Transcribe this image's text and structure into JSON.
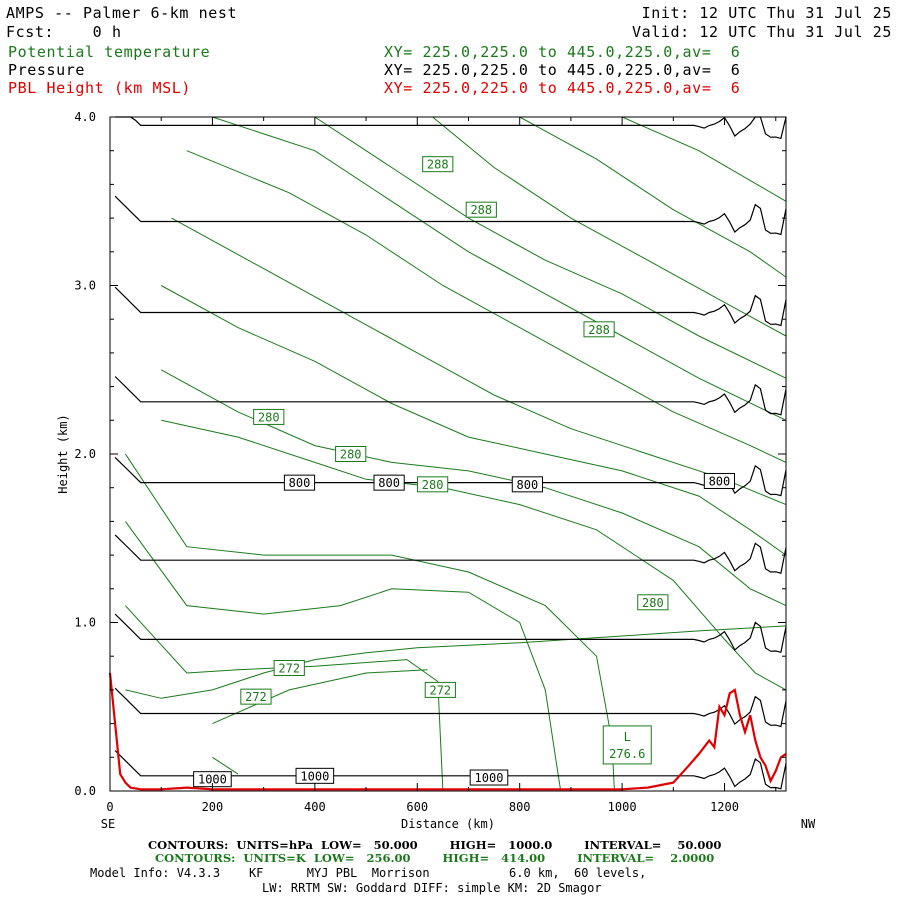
{
  "header": {
    "title": "AMPS -- Palmer 6-km nest",
    "fcst": "Fcst:    0 h",
    "init": "Init: 12 UTC Thu 31 Jul 25",
    "valid": "Valid: 12 UTC Thu 31 Jul 25",
    "fields": [
      {
        "name": "Potential temperature",
        "xy": "XY= 225.0,225.0 to 445.0,225.0,av=  6",
        "color": "#1a7a1a"
      },
      {
        "name": "Pressure",
        "xy": "XY= 225.0,225.0 to 445.0,225.0,av=  6",
        "color": "#000000"
      },
      {
        "name": "PBL Height (km MSL)",
        "xy": "XY= 225.0,225.0 to 445.0,225.0,av=  6",
        "color": "#e00000"
      }
    ]
  },
  "footer": {
    "pressure_contours": "CONTOURS:  UNITS=hPa  LOW=   50.000        HIGH=   1000.0        INTERVAL=    50.000",
    "theta_contours": "CONTOURS:  UNITS=K  LOW=   256.00        HIGH=   414.00        INTERVAL=    2.0000",
    "model_info": "Model Info: V4.3.3    KF      MYJ PBL  Morrison           6.0 km,  60 levels,",
    "physics": "LW: RRTM SW: Goddard DIFF: simple KM: 2D Smagor"
  },
  "chart_data": {
    "type": "line",
    "xlabel": "Distance (km)",
    "ylabel": "Height (km)",
    "xlim": [
      0,
      1320
    ],
    "ylim": [
      0,
      4.0
    ],
    "x_ticks": [
      0,
      200,
      400,
      600,
      800,
      1000,
      1200
    ],
    "y_ticks": [
      0.0,
      1.0,
      2.0,
      3.0,
      4.0
    ],
    "y_tick_labels": [
      "0.0",
      "1.0",
      "2.0",
      "3.0",
      "4.0"
    ],
    "x_end_labels": {
      "left": "SE",
      "right": "NW"
    },
    "colors": {
      "theta": "#1a7a1a",
      "pressure": "#000000",
      "pbl": "#e00000"
    },
    "pressure_isobars": [
      {
        "hPa": 1000,
        "height_km": 0.09
      },
      {
        "hPa": 950,
        "height_km": 0.46
      },
      {
        "hPa": 900,
        "height_km": 0.9
      },
      {
        "hPa": 850,
        "height_km": 1.37
      },
      {
        "hPa": 800,
        "height_km": 1.83
      },
      {
        "hPa": 750,
        "height_km": 2.31
      },
      {
        "hPa": 700,
        "height_km": 2.84
      },
      {
        "hPa": 650,
        "height_km": 3.38
      },
      {
        "hPa": 600,
        "height_km": 3.95
      }
    ],
    "pressure_labels": [
      {
        "text": "1000",
        "x": 200,
        "y": 0.07
      },
      {
        "text": "1000",
        "x": 400,
        "y": 0.09
      },
      {
        "text": "1000",
        "x": 740,
        "y": 0.08
      },
      {
        "text": "800",
        "x": 370,
        "y": 1.83
      },
      {
        "text": "800",
        "x": 545,
        "y": 1.83
      },
      {
        "text": "800",
        "x": 815,
        "y": 1.82
      },
      {
        "text": "800",
        "x": 1190,
        "y": 1.84
      }
    ],
    "theta_lines": [
      {
        "points": [
          [
            30,
            0.6
          ],
          [
            100,
            0.55
          ],
          [
            200,
            0.6
          ],
          [
            300,
            0.7
          ],
          [
            400,
            0.78
          ],
          [
            500,
            0.82
          ],
          [
            600,
            0.85
          ],
          [
            800,
            0.88
          ],
          [
            1000,
            0.92
          ],
          [
            1150,
            0.95
          ],
          [
            1320,
            0.98
          ]
        ]
      },
      {
        "points": [
          [
            30,
            1.1
          ],
          [
            150,
            0.7
          ],
          [
            250,
            0.72
          ],
          [
            400,
            0.74
          ],
          [
            580,
            0.78
          ],
          [
            640,
            0.65
          ],
          [
            650,
            0.0
          ]
        ]
      },
      {
        "points": [
          [
            200,
            0.4
          ],
          [
            350,
            0.6
          ],
          [
            500,
            0.7
          ],
          [
            620,
            0.72
          ]
        ]
      },
      {
        "points": [
          [
            200,
            0.2
          ],
          [
            250,
            0.1
          ]
        ]
      },
      {
        "points": [
          [
            30,
            1.6
          ],
          [
            150,
            1.1
          ],
          [
            300,
            1.05
          ],
          [
            450,
            1.1
          ],
          [
            550,
            1.2
          ],
          [
            700,
            1.18
          ],
          [
            800,
            1.0
          ],
          [
            850,
            0.6
          ],
          [
            870,
            0.2
          ],
          [
            880,
            0.0
          ]
        ]
      },
      {
        "points": [
          [
            30,
            2.0
          ],
          [
            150,
            1.45
          ],
          [
            300,
            1.4
          ],
          [
            450,
            1.4
          ],
          [
            550,
            1.4
          ],
          [
            700,
            1.3
          ],
          [
            850,
            1.1
          ],
          [
            950,
            0.8
          ],
          [
            980,
            0.3
          ],
          [
            985,
            0.0
          ]
        ]
      },
      {
        "points": [
          [
            100,
            2.2
          ],
          [
            250,
            2.1
          ],
          [
            400,
            1.95
          ],
          [
            500,
            1.85
          ],
          [
            650,
            1.8
          ],
          [
            800,
            1.7
          ],
          [
            950,
            1.55
          ],
          [
            1100,
            1.25
          ],
          [
            1200,
            0.9
          ],
          [
            1260,
            0.7
          ],
          [
            1320,
            0.6
          ]
        ]
      },
      {
        "points": [
          [
            100,
            2.5
          ],
          [
            250,
            2.25
          ],
          [
            400,
            2.05
          ],
          [
            550,
            1.95
          ],
          [
            700,
            1.9
          ],
          [
            850,
            1.8
          ],
          [
            1000,
            1.65
          ],
          [
            1150,
            1.45
          ],
          [
            1250,
            1.2
          ],
          [
            1320,
            1.1
          ]
        ]
      },
      {
        "points": [
          [
            100,
            3.0
          ],
          [
            250,
            2.75
          ],
          [
            400,
            2.55
          ],
          [
            550,
            2.3
          ],
          [
            700,
            2.1
          ],
          [
            850,
            2.0
          ],
          [
            1000,
            1.9
          ],
          [
            1150,
            1.75
          ],
          [
            1250,
            1.55
          ],
          [
            1320,
            1.4
          ]
        ]
      },
      {
        "points": [
          [
            120,
            3.4
          ],
          [
            300,
            3.1
          ],
          [
            450,
            2.85
          ],
          [
            600,
            2.6
          ],
          [
            750,
            2.35
          ],
          [
            900,
            2.15
          ],
          [
            1050,
            2.0
          ],
          [
            1200,
            1.85
          ],
          [
            1320,
            1.7
          ]
        ]
      },
      {
        "points": [
          [
            150,
            3.8
          ],
          [
            350,
            3.55
          ],
          [
            500,
            3.3
          ],
          [
            650,
            3.0
          ],
          [
            800,
            2.75
          ],
          [
            950,
            2.5
          ],
          [
            1100,
            2.25
          ],
          [
            1250,
            2.05
          ],
          [
            1320,
            1.95
          ]
        ]
      },
      {
        "points": [
          [
            200,
            4.0
          ],
          [
            400,
            3.8
          ],
          [
            550,
            3.5
          ],
          [
            700,
            3.2
          ],
          [
            850,
            2.95
          ],
          [
            1000,
            2.7
          ],
          [
            1150,
            2.45
          ],
          [
            1320,
            2.2
          ]
        ]
      },
      {
        "points": [
          [
            400,
            4.0
          ],
          [
            550,
            3.7
          ],
          [
            700,
            3.4
          ],
          [
            850,
            3.15
          ],
          [
            1000,
            2.95
          ],
          [
            1150,
            2.7
          ],
          [
            1320,
            2.45
          ]
        ]
      },
      {
        "points": [
          [
            630,
            4.0
          ],
          [
            750,
            3.7
          ],
          [
            900,
            3.4
          ],
          [
            1050,
            3.15
          ],
          [
            1200,
            2.9
          ],
          [
            1320,
            2.7
          ]
        ]
      },
      {
        "points": [
          [
            800,
            4.0
          ],
          [
            950,
            3.75
          ],
          [
            1100,
            3.45
          ],
          [
            1250,
            3.2
          ],
          [
            1320,
            3.05
          ]
        ]
      },
      {
        "points": [
          [
            1000,
            4.0
          ],
          [
            1150,
            3.8
          ],
          [
            1320,
            3.5
          ]
        ]
      }
    ],
    "theta_labels": [
      {
        "text": "288",
        "x": 640,
        "y": 3.72
      },
      {
        "text": "288",
        "x": 725,
        "y": 3.45
      },
      {
        "text": "288",
        "x": 955,
        "y": 2.74
      },
      {
        "text": "280",
        "x": 310,
        "y": 2.22
      },
      {
        "text": "280",
        "x": 470,
        "y": 2.0
      },
      {
        "text": "280",
        "x": 630,
        "y": 1.82
      },
      {
        "text": "280",
        "x": 1060,
        "y": 1.12
      },
      {
        "text": "272",
        "x": 350,
        "y": 0.73
      },
      {
        "text": "272",
        "x": 285,
        "y": 0.56
      },
      {
        "text": "272",
        "x": 645,
        "y": 0.6
      }
    ],
    "low_marker": {
      "letter": "L",
      "value": "276.6",
      "x": 1010,
      "y": 0.22
    },
    "pbl_height": {
      "x": [
        0,
        10,
        20,
        30,
        40,
        60,
        100,
        150,
        200,
        250,
        300,
        400,
        500,
        600,
        700,
        800,
        900,
        1000,
        1050,
        1100,
        1130,
        1150,
        1170,
        1180,
        1190,
        1200,
        1210,
        1220,
        1230,
        1240,
        1250,
        1260,
        1270,
        1280,
        1290,
        1300,
        1310,
        1320
      ],
      "y": [
        0.7,
        0.4,
        0.1,
        0.05,
        0.02,
        0.01,
        0.01,
        0.02,
        0.01,
        0.01,
        0.01,
        0.01,
        0.01,
        0.01,
        0.01,
        0.01,
        0.01,
        0.01,
        0.02,
        0.05,
        0.15,
        0.22,
        0.3,
        0.26,
        0.5,
        0.45,
        0.58,
        0.6,
        0.45,
        0.35,
        0.45,
        0.3,
        0.2,
        0.15,
        0.06,
        0.12,
        0.2,
        0.22
      ]
    }
  }
}
